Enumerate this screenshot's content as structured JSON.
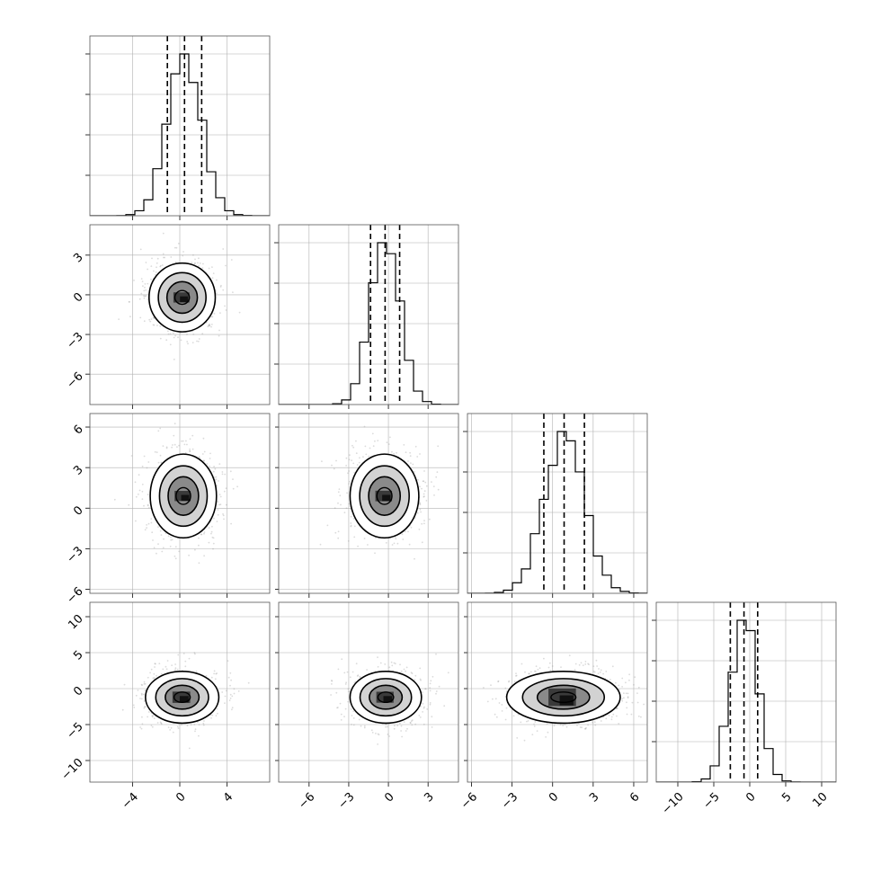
{
  "chart_data": {
    "type": "corner",
    "n_params": 4,
    "grid": true,
    "quantiles": [
      0.16,
      0.5,
      0.84
    ],
    "params": [
      {
        "mean": 0.4,
        "sd": 1.45,
        "ticks": [
          -4,
          0,
          4
        ],
        "tick_labels": [
          "−4",
          "0",
          "4"
        ],
        "lim": [
          -7.6,
          7.6
        ]
      },
      {
        "mean": -0.25,
        "sd": 1.1,
        "ticks": [
          -6,
          -3,
          0,
          3
        ],
        "tick_labels": [
          "−6",
          "−3",
          "0",
          "3"
        ],
        "lim": [
          -8.3,
          5.3
        ]
      },
      {
        "mean": 0.85,
        "sd": 1.5,
        "ticks": [
          -6,
          -3,
          0,
          3,
          6
        ],
        "tick_labels": [
          "−6",
          "−3",
          "0",
          "3",
          "6"
        ],
        "lim": [
          -6.3,
          7.0
        ]
      },
      {
        "mean": -0.8,
        "sd": 1.9,
        "ticks": [
          -10,
          -5,
          0,
          5,
          10
        ],
        "tick_labels": [
          "−10",
          "−5",
          "0",
          "5",
          "10"
        ],
        "lim": [
          -13.0,
          12.0
        ]
      }
    ],
    "panels": [
      {
        "row": 0,
        "col": 0,
        "kind": "hist",
        "param": 0,
        "q_lines": [
          -1.05,
          0.4,
          1.85
        ]
      },
      {
        "row": 1,
        "col": 0,
        "kind": "density",
        "x": 0,
        "y": 1,
        "cx": 0.2,
        "cy": -0.2,
        "rx": 2.8,
        "ry": 2.6
      },
      {
        "row": 1,
        "col": 1,
        "kind": "hist",
        "param": 1,
        "q_lines": [
          -1.35,
          -0.25,
          0.85
        ]
      },
      {
        "row": 2,
        "col": 0,
        "kind": "density",
        "x": 0,
        "y": 2,
        "cx": 0.3,
        "cy": 0.9,
        "rx": 2.8,
        "ry": 3.1
      },
      {
        "row": 2,
        "col": 1,
        "kind": "density",
        "x": 1,
        "y": 2,
        "cx": -0.3,
        "cy": 0.9,
        "rx": 2.6,
        "ry": 3.1
      },
      {
        "row": 2,
        "col": 2,
        "kind": "hist",
        "param": 2,
        "q_lines": [
          -0.65,
          0.85,
          2.35
        ]
      },
      {
        "row": 3,
        "col": 0,
        "kind": "density",
        "x": 0,
        "y": 3,
        "cx": 0.2,
        "cy": -1.2,
        "rx": 3.1,
        "ry": 3.6
      },
      {
        "row": 3,
        "col": 1,
        "kind": "density",
        "x": 1,
        "y": 3,
        "cx": -0.2,
        "cy": -1.2,
        "rx": 2.7,
        "ry": 3.6
      },
      {
        "row": 3,
        "col": 2,
        "kind": "density",
        "x": 2,
        "y": 3,
        "cx": 0.8,
        "cy": -1.2,
        "rx": 4.2,
        "ry": 3.6
      },
      {
        "row": 3,
        "col": 3,
        "kind": "hist",
        "param": 3,
        "q_lines": [
          -2.7,
          -0.8,
          1.1
        ]
      }
    ]
  }
}
